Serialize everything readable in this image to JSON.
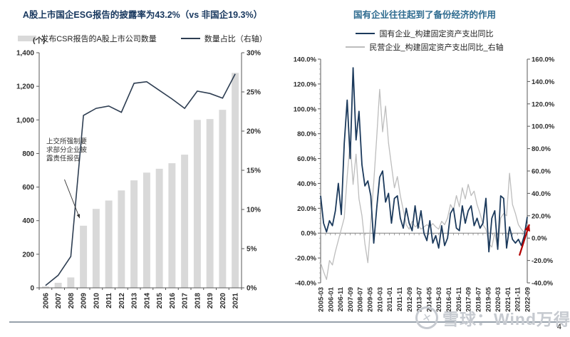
{
  "page": {
    "watermark": "雪球：Wind万得",
    "page_number": "4",
    "divider_color": "#97a1ab",
    "watermark_color": "#c6cad0"
  },
  "chart_data": [
    {
      "id": "esg-disclosure-chart",
      "type": "bar",
      "title": "A股上市国企ESG报告的披露率为43.2%（vs 非国企19.3%）",
      "title_color": "#17375e",
      "unit_label": "(个)",
      "categories": [
        "2006",
        "2007",
        "2008",
        "2009",
        "2010",
        "2011",
        "2012",
        "2013",
        "2014",
        "2015",
        "2016",
        "2017",
        "2018",
        "2019",
        "2020",
        "2021"
      ],
      "series": [
        {
          "name": "发布CSR报告的A股上市公司数量",
          "type": "bar",
          "axis": "left",
          "color": "#d9d9d9",
          "values": [
            8,
            30,
            62,
            370,
            470,
            520,
            580,
            640,
            686,
            709,
            742,
            793,
            1000,
            1005,
            1060,
            1280
          ]
        },
        {
          "name": "数量占比（右轴）",
          "type": "line",
          "axis": "right",
          "color": "#2e3e52",
          "values": [
            0.3,
            1.6,
            4.0,
            22.0,
            22.9,
            23.2,
            22.4,
            26.1,
            26.3,
            25.2,
            24.1,
            22.9,
            25.1,
            24.8,
            24.2,
            27.3
          ]
        }
      ],
      "left_axis": {
        "min": 0,
        "max": 1400,
        "step": 200
      },
      "right_axis": {
        "min": 0,
        "max": 30,
        "step": 5,
        "suffix": "%"
      },
      "grid": false,
      "legend_position": "top",
      "annotation": {
        "lines": [
          "上交所强制要",
          "求部分企业披",
          "露责任报告"
        ],
        "text": {
          "fx": 0.035,
          "v": 860
        },
        "arrow": {
          "from": {
            "fx": 0.125,
            "v": 645
          },
          "to": {
            "fx": 0.2,
            "v": 415
          }
        },
        "color": "#333333"
      }
    },
    {
      "id": "soe-capex-chart",
      "type": "line",
      "title": "国有企业往往起到了备份经济的作用",
      "title_color": "#2e6b8f",
      "x_start": "2005-03",
      "x_interval_months": 3,
      "x_labels": [
        "2005-03",
        "2006-01",
        "2006-11",
        "2007-09",
        "2008-07",
        "2009-05",
        "2010-03",
        "2011-01",
        "2011-11",
        "2012-09",
        "2013-07",
        "2014-05",
        "2015-03",
        "2016-01",
        "2016-11",
        "2017-09",
        "2018-07",
        "2019-05",
        "2020-03",
        "2021-01",
        "2021-11",
        "2022-09"
      ],
      "series": [
        {
          "name": "国有企业_构建固定资产支出同比",
          "axis": "left",
          "color": "#1c3a5c",
          "width": 1.8,
          "values": [
            30,
            8,
            1,
            10,
            6,
            18,
            40,
            15,
            72,
            107,
            60,
            133,
            75,
            98,
            55,
            38,
            42,
            30,
            -8,
            20,
            45,
            50,
            25,
            32,
            8,
            28,
            30,
            12,
            4,
            20,
            8,
            2,
            22,
            4,
            18,
            0,
            -6,
            10,
            -8,
            -2,
            -12,
            6,
            -10,
            -4,
            16,
            20,
            4,
            2,
            22,
            8,
            18,
            22,
            6,
            12,
            4,
            8,
            28,
            -15,
            12,
            18,
            -13,
            30,
            28,
            -12,
            5,
            -5,
            -8,
            -5,
            -10,
            -2,
            13
          ]
        },
        {
          "name": "民营企业_构建固定资产支出同比_右轴",
          "axis": "right",
          "color": "#bdbdbd",
          "width": 1.3,
          "values": [
            -22,
            -30,
            -37,
            -20,
            -24,
            -12,
            -2,
            8,
            18,
            55,
            86,
            48,
            75,
            35,
            20,
            -5,
            -22,
            15,
            50,
            90,
            133,
            95,
            118,
            85,
            65,
            45,
            55,
            38,
            25,
            12,
            8,
            15,
            10,
            12,
            8,
            10,
            12,
            10,
            13,
            10,
            8,
            15,
            12,
            18,
            30,
            25,
            38,
            28,
            45,
            35,
            48,
            38,
            42,
            30,
            22,
            12,
            8,
            -5,
            -8,
            5,
            -10,
            18,
            22,
            20,
            58,
            30,
            22,
            12,
            8,
            5,
            13
          ]
        }
      ],
      "left_axis": {
        "min": -40,
        "max": 140,
        "step": 20,
        "suffix": "%"
      },
      "right_axis": {
        "min": -40,
        "max": 160,
        "step": 20,
        "suffix": "%"
      },
      "grid": false,
      "legend_position": "top",
      "annotation": {
        "type": "arrow",
        "color": "#b30000",
        "from": {
          "f": 0.962,
          "v": -18
        },
        "to": {
          "f": 1.01,
          "v": 7
        }
      }
    }
  ]
}
